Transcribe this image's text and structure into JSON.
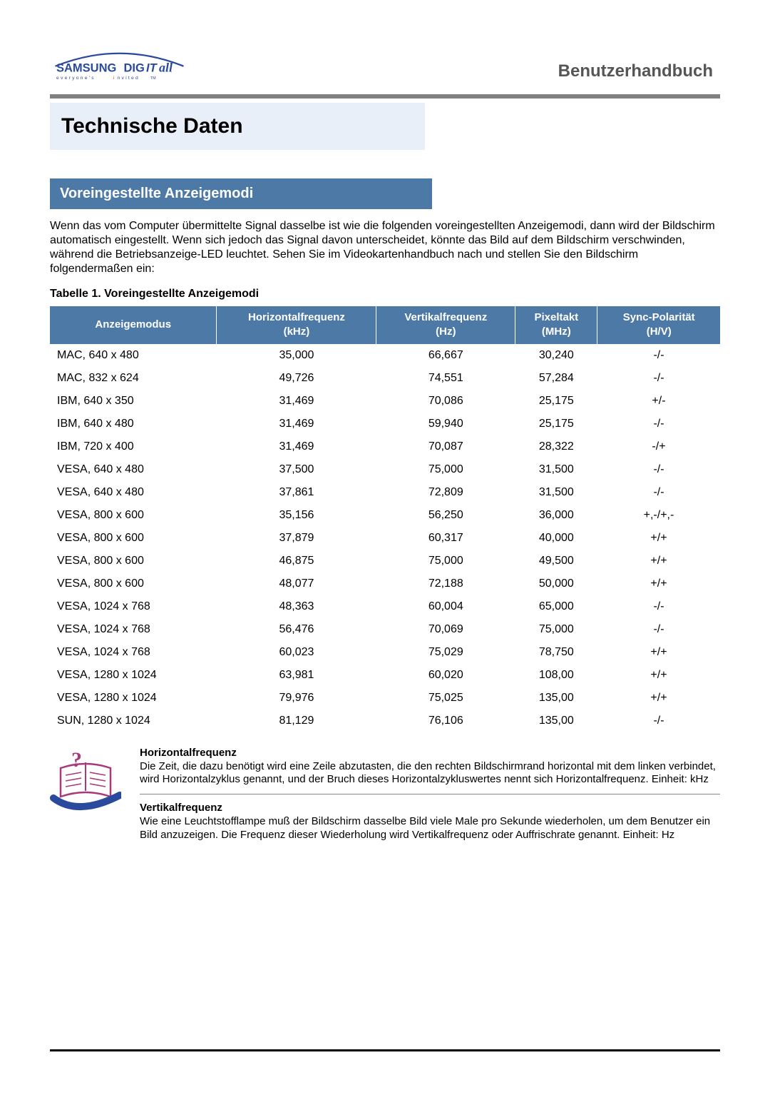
{
  "brand": {
    "name": "SAMSUNG DIGITall",
    "tagline": "everyone's invited™",
    "logo_colors": {
      "arc": "#2a4a9d",
      "text": "#2a4a9d",
      "accent_i": "#c83232",
      "tagline": "#2a4a9d"
    }
  },
  "doc_title": "Benutzerhandbuch",
  "section_title": "Technische Daten",
  "subhead": "Voreingestellte Anzeigemodi",
  "intro_text": "Wenn das vom Computer übermittelte Signal dasselbe ist wie die folgenden voreingestellten Anzeigemodi, dann wird der Bildschirm automatisch eingestellt. Wenn sich jedoch das Signal davon unterscheidet, könnte das Bild auf dem Bildschirm verschwinden, während die Betriebsanzeige-LED leuchtet. Sehen Sie im Videokartenhandbuch nach und stellen Sie den Bildschirm folgendermaßen ein:",
  "table": {
    "caption": "Tabelle 1. Voreingestellte Anzeigemodi",
    "header_bg": "#4d79a7",
    "header_fg": "#ffffff",
    "columns": [
      {
        "line1": "Anzeigemodus",
        "line2": ""
      },
      {
        "line1": "Horizontalfrequenz",
        "line2": "(kHz)"
      },
      {
        "line1": "Vertikalfrequenz",
        "line2": "(Hz)"
      },
      {
        "line1": "Pixeltakt",
        "line2": "(MHz)"
      },
      {
        "line1": "Sync-Polarität",
        "line2": "(H/V)"
      }
    ],
    "rows": [
      [
        "MAC, 640 x 480",
        "35,000",
        "66,667",
        "30,240",
        "-/-"
      ],
      [
        "MAC, 832 x 624",
        "49,726",
        "74,551",
        "57,284",
        "-/-"
      ],
      [
        "IBM, 640 x 350",
        "31,469",
        "70,086",
        "25,175",
        "+/-"
      ],
      [
        "IBM, 640 x 480",
        "31,469",
        "59,940",
        "25,175",
        "-/-"
      ],
      [
        "IBM, 720 x 400",
        "31,469",
        "70,087",
        "28,322",
        "-/+"
      ],
      [
        "VESA, 640 x 480",
        "37,500",
        "75,000",
        "31,500",
        "-/-"
      ],
      [
        "VESA, 640 x 480",
        "37,861",
        "72,809",
        "31,500",
        "-/-"
      ],
      [
        "VESA, 800 x 600",
        "35,156",
        "56,250",
        "36,000",
        "+,-/+,-"
      ],
      [
        "VESA, 800 x 600",
        "37,879",
        "60,317",
        "40,000",
        "+/+"
      ],
      [
        "VESA, 800 x 600",
        "46,875",
        "75,000",
        "49,500",
        "+/+"
      ],
      [
        "VESA, 800 x 600",
        "48,077",
        "72,188",
        "50,000",
        "+/+"
      ],
      [
        "VESA, 1024 x 768",
        "48,363",
        "60,004",
        "65,000",
        "-/-"
      ],
      [
        "VESA, 1024 x 768",
        "56,476",
        "70,069",
        "75,000",
        "-/-"
      ],
      [
        "VESA, 1024 x 768",
        "60,023",
        "75,029",
        "78,750",
        "+/+"
      ],
      [
        "VESA, 1280 x 1024",
        "63,981",
        "60,020",
        "108,00",
        "+/+"
      ],
      [
        "VESA, 1280 x 1024",
        "79,976",
        "75,025",
        "135,00",
        "+/+"
      ],
      [
        "SUN, 1280 x 1024",
        "81,129",
        "76,106",
        "135,00",
        "-/-"
      ]
    ]
  },
  "notes": [
    {
      "title": "Horizontalfrequenz",
      "body": "Die Zeit, die dazu benötigt wird eine Zeile abzutasten, die den rechten Bildschirmrand horizontal mit dem linken verbindet, wird Horizontalzyklus genannt, und der Bruch dieses Horizontalzykluswertes nennt sich Horizontalfrequenz. Einheit: kHz"
    },
    {
      "title": "Vertikalfrequenz",
      "body": "Wie eine Leuchtstofflampe muß der Bildschirm dasselbe Bild viele Male pro Sekunde wiederholen, um dem Benutzer ein Bild anzuzeigen. Die Frequenz dieser Wiederholung wird Vertikalfrequenz oder Auffrischrate genannt. Einheit: Hz"
    }
  ],
  "note_icon": {
    "book_fill": "#ffffff",
    "book_outline": "#a93a7a",
    "page_line": "#a93a7a",
    "qmark": "#a93a7a",
    "swoosh": "#2a4a9d"
  }
}
